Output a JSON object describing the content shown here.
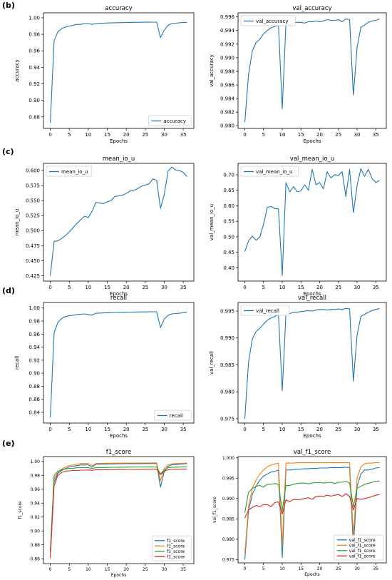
{
  "panels": [
    {
      "label": "(b)"
    },
    {
      "label": "(c)"
    },
    {
      "label": "(d)"
    },
    {
      "label": "(e)"
    }
  ],
  "colors": {
    "blue": "#1f77b4",
    "orange": "#ff7f0e",
    "green": "#2ca02c",
    "red": "#d62728",
    "axis": "#000000",
    "legend_border": "#cccccc"
  },
  "chart_data": [
    {
      "type": "line",
      "title": "accuracy",
      "xlabel": "Epochs",
      "ylabel": "accuracy",
      "xlim": [
        -1.8,
        37.8
      ],
      "ylim": [
        0.866,
        1.006
      ],
      "xticks": [
        0,
        5,
        10,
        15,
        20,
        25,
        30,
        35
      ],
      "yticks": [
        0.88,
        0.9,
        0.92,
        0.94,
        0.96,
        0.98,
        1.0
      ],
      "ytick_labels": [
        "0.88",
        "0.90",
        "0.92",
        "0.94",
        "0.96",
        "0.98",
        "1.00"
      ],
      "legend_position": "lower right",
      "series": [
        {
          "name": "accuracy",
          "color": "blue",
          "values": [
            0.873,
            0.972,
            0.983,
            0.987,
            0.989,
            0.99,
            0.991,
            0.992,
            0.992,
            0.993,
            0.993,
            0.992,
            0.993,
            0.9933,
            0.9935,
            0.9937,
            0.9938,
            0.994,
            0.9941,
            0.9942,
            0.9943,
            0.9944,
            0.9945,
            0.9946,
            0.9946,
            0.9947,
            0.9947,
            0.9948,
            0.9948,
            0.976,
            0.985,
            0.991,
            0.993,
            0.9935,
            0.994,
            0.9943,
            0.9945
          ]
        }
      ]
    },
    {
      "type": "line",
      "title": "val_accuracy",
      "xlabel": "Epochs",
      "ylabel": "val_accuracy",
      "xlim": [
        -1.8,
        37.8
      ],
      "ylim": [
        0.9796,
        0.9966
      ],
      "xticks": [
        0,
        5,
        10,
        15,
        20,
        25,
        30,
        35
      ],
      "yticks": [
        0.98,
        0.982,
        0.984,
        0.986,
        0.988,
        0.99,
        0.992,
        0.994,
        0.996
      ],
      "ytick_labels": [
        "0.980",
        "0.982",
        "0.984",
        "0.986",
        "0.988",
        "0.990",
        "0.992",
        "0.994",
        "0.996"
      ],
      "legend_position": "upper left",
      "series": [
        {
          "name": "val_accuracy",
          "color": "blue",
          "values": [
            0.9805,
            0.9875,
            0.991,
            0.9922,
            0.9927,
            0.9935,
            0.994,
            0.9944,
            0.9946,
            0.9948,
            0.9825,
            0.995,
            0.9948,
            0.9952,
            0.9952,
            0.9952,
            0.9951,
            0.9953,
            0.9953,
            0.9954,
            0.9953,
            0.9954,
            0.9956,
            0.9955,
            0.9955,
            0.9956,
            0.9953,
            0.9957,
            0.9956,
            0.9845,
            0.9915,
            0.9945,
            0.9948,
            0.9952,
            0.9954,
            0.9955,
            0.9957
          ]
        }
      ]
    },
    {
      "type": "line",
      "title": "mean_io_u",
      "xlabel": "Epochs",
      "ylabel": "mean_io_u",
      "xlim": [
        -1.8,
        37.8
      ],
      "ylim": [
        0.416,
        0.612
      ],
      "xticks": [
        0,
        5,
        10,
        15,
        20,
        25,
        30,
        35
      ],
      "yticks": [
        0.425,
        0.45,
        0.475,
        0.5,
        0.525,
        0.55,
        0.575,
        0.6
      ],
      "ytick_labels": [
        "0.425",
        "0.450",
        "0.475",
        "0.500",
        "0.525",
        "0.550",
        "0.575",
        "0.600"
      ],
      "legend_position": "upper left",
      "series": [
        {
          "name": "mean_io_u",
          "color": "blue",
          "values": [
            0.425,
            0.482,
            0.483,
            0.487,
            0.492,
            0.498,
            0.505,
            0.512,
            0.518,
            0.524,
            0.522,
            0.532,
            0.547,
            0.546,
            0.545,
            0.548,
            0.55,
            0.557,
            0.558,
            0.559,
            0.562,
            0.566,
            0.567,
            0.57,
            0.574,
            0.576,
            0.578,
            0.586,
            0.584,
            0.537,
            0.56,
            0.599,
            0.606,
            0.601,
            0.6,
            0.597,
            0.59
          ]
        }
      ]
    },
    {
      "type": "line",
      "title": "val_mean_io_u",
      "xlabel": "Epochs",
      "ylabel": "val_mean_io_u",
      "xlim": [
        -1.8,
        37.8
      ],
      "ylim": [
        0.357,
        0.737
      ],
      "xticks": [
        0,
        5,
        10,
        15,
        20,
        25,
        30,
        35
      ],
      "yticks": [
        0.4,
        0.45,
        0.5,
        0.55,
        0.6,
        0.65,
        0.7
      ],
      "ytick_labels": [
        "0.40",
        "0.45",
        "0.50",
        "0.55",
        "0.60",
        "0.65",
        "0.70"
      ],
      "legend_position": "upper left",
      "series": [
        {
          "name": "val_mean_io_u",
          "color": "blue",
          "values": [
            0.452,
            0.487,
            0.502,
            0.489,
            0.499,
            0.54,
            0.595,
            0.598,
            0.591,
            0.59,
            0.375,
            0.675,
            0.645,
            0.662,
            0.645,
            0.648,
            0.668,
            0.65,
            0.718,
            0.668,
            0.675,
            0.655,
            0.71,
            0.69,
            0.7,
            0.698,
            0.71,
            0.63,
            0.718,
            0.578,
            0.665,
            0.72,
            0.695,
            0.718,
            0.688,
            0.675,
            0.682
          ]
        }
      ]
    },
    {
      "type": "line",
      "title": "recall",
      "xlabel": "Epochs",
      "ylabel": "recall",
      "xlim": [
        -1.8,
        37.8
      ],
      "ylim": [
        0.8235,
        1.0085
      ],
      "xticks": [
        0,
        5,
        10,
        15,
        20,
        25,
        30,
        35
      ],
      "yticks": [
        0.84,
        0.86,
        0.88,
        0.9,
        0.92,
        0.94,
        0.96,
        0.98,
        1.0
      ],
      "ytick_labels": [
        "0.84",
        "0.86",
        "0.88",
        "0.90",
        "0.92",
        "0.94",
        "0.96",
        "0.98",
        "1.00"
      ],
      "legend_position": "lower right",
      "series": [
        {
          "name": "recall",
          "color": "blue",
          "values": [
            0.832,
            0.962,
            0.978,
            0.984,
            0.987,
            0.988,
            0.989,
            0.99,
            0.9905,
            0.991,
            0.99,
            0.989,
            0.992,
            0.9922,
            0.9925,
            0.9927,
            0.993,
            0.9932,
            0.9933,
            0.9935,
            0.9936,
            0.9937,
            0.9938,
            0.994,
            0.994,
            0.9941,
            0.9942,
            0.9943,
            0.9943,
            0.97,
            0.983,
            0.989,
            0.991,
            0.9915,
            0.992,
            0.993,
            0.9935
          ]
        }
      ]
    },
    {
      "type": "line",
      "title": "val_recall",
      "xlabel": "Epochs",
      "ylabel": "val_recall",
      "xlim": [
        -1.8,
        37.8
      ],
      "ylim": [
        0.9742,
        0.9966
      ],
      "xticks": [
        0,
        5,
        10,
        15,
        20,
        25,
        30,
        35
      ],
      "yticks": [
        0.975,
        0.98,
        0.985,
        0.99,
        0.995
      ],
      "ytick_labels": [
        "0.975",
        "0.980",
        "0.985",
        "0.990",
        "0.995"
      ],
      "legend_position": "upper left",
      "series": [
        {
          "name": "val_recall",
          "color": "blue",
          "values": [
            0.975,
            0.9855,
            0.9898,
            0.9912,
            0.9918,
            0.9926,
            0.9933,
            0.9937,
            0.994,
            0.9943,
            0.9802,
            0.9945,
            0.9945,
            0.9948,
            0.9948,
            0.9949,
            0.995,
            0.9951,
            0.995,
            0.9952,
            0.9953,
            0.9953,
            0.9952,
            0.9953,
            0.9953,
            0.9954,
            0.9953,
            0.9955,
            0.9954,
            0.982,
            0.9905,
            0.994,
            0.9944,
            0.9948,
            0.9951,
            0.9953,
            0.9955
          ]
        }
      ]
    },
    {
      "type": "line",
      "title": "f1_score",
      "xlabel": "Epochs",
      "ylabel": "f1_score",
      "xlim": [
        -1.8,
        37.8
      ],
      "ylim": [
        0.853,
        1.007
      ],
      "xticks": [
        0,
        5,
        10,
        15,
        20,
        25,
        30,
        35
      ],
      "yticks": [
        0.86,
        0.88,
        0.9,
        0.92,
        0.94,
        0.96,
        0.98,
        1.0
      ],
      "ytick_labels": [
        "0.86",
        "0.88",
        "0.90",
        "0.92",
        "0.94",
        "0.96",
        "0.98",
        "1.00"
      ],
      "legend_position": "lower right",
      "series": [
        {
          "name": "f1_score",
          "color": "blue",
          "values": [
            0.87,
            0.97,
            0.983,
            0.987,
            0.99,
            0.992,
            0.993,
            0.994,
            0.995,
            0.995,
            0.995,
            0.992,
            0.996,
            0.996,
            0.9962,
            0.9963,
            0.9964,
            0.9965,
            0.9966,
            0.9966,
            0.9967,
            0.9967,
            0.9968,
            0.9968,
            0.9968,
            0.9969,
            0.9969,
            0.997,
            0.997,
            0.963,
            0.985,
            0.993,
            0.995,
            0.9955,
            0.996,
            0.9965,
            0.9968
          ]
        },
        {
          "name": "f1_score",
          "color": "orange",
          "values": [
            0.86,
            0.975,
            0.985,
            0.989,
            0.992,
            0.994,
            0.995,
            0.996,
            0.997,
            0.997,
            0.997,
            0.994,
            0.997,
            0.9972,
            0.9973,
            0.9974,
            0.9975,
            0.9976,
            0.9976,
            0.9977,
            0.9977,
            0.9978,
            0.9978,
            0.9978,
            0.9979,
            0.9979,
            0.9979,
            0.998,
            0.998,
            0.972,
            0.99,
            0.995,
            0.9965,
            0.997,
            0.9972,
            0.9975,
            0.9978
          ]
        },
        {
          "name": "f1_score",
          "color": "green",
          "values": [
            0.87,
            0.98,
            0.986,
            0.988,
            0.989,
            0.99,
            0.99,
            0.991,
            0.991,
            0.991,
            0.991,
            0.99,
            0.991,
            0.9912,
            0.9913,
            0.9914,
            0.9915,
            0.9916,
            0.9917,
            0.9918,
            0.9918,
            0.9919,
            0.9919,
            0.992,
            0.992,
            0.992,
            0.992,
            0.992,
            0.992,
            0.982,
            0.988,
            0.991,
            0.9915,
            0.9918,
            0.992,
            0.992,
            0.9922
          ]
        },
        {
          "name": "f1_score",
          "color": "red",
          "values": [
            0.862,
            0.965,
            0.98,
            0.984,
            0.986,
            0.9865,
            0.987,
            0.987,
            0.9875,
            0.9875,
            0.9878,
            0.9872,
            0.988,
            0.988,
            0.988,
            0.9882,
            0.9882,
            0.9883,
            0.9884,
            0.9884,
            0.9885,
            0.9885,
            0.9885,
            0.9886,
            0.9886,
            0.9887,
            0.9887,
            0.9888,
            0.9888,
            0.981,
            0.986,
            0.988,
            0.9885,
            0.9887,
            0.9888,
            0.9889,
            0.989
          ]
        }
      ]
    },
    {
      "type": "line",
      "title": "val_f1_score",
      "xlabel": "Epochs",
      "ylabel": "val_f1_score",
      "xlim": [
        -1.8,
        37.8
      ],
      "ylim": [
        0.9742,
        1.0003
      ],
      "xticks": [
        0,
        5,
        10,
        15,
        20,
        25,
        30,
        35
      ],
      "yticks": [
        0.975,
        0.98,
        0.985,
        0.99,
        0.995,
        1.0
      ],
      "ytick_labels": [
        "0.975",
        "0.980",
        "0.985",
        "0.990",
        "0.995",
        "1.000"
      ],
      "legend_position": "lower right",
      "series": [
        {
          "name": "val_f1_score",
          "color": "blue",
          "values": [
            0.975,
            0.987,
            0.991,
            0.993,
            0.9945,
            0.9955,
            0.996,
            0.9965,
            0.9967,
            0.997,
            0.9755,
            0.997,
            0.997,
            0.9971,
            0.9972,
            0.9972,
            0.9973,
            0.9973,
            0.9974,
            0.9974,
            0.9975,
            0.9975,
            0.9975,
            0.9976,
            0.9976,
            0.9976,
            0.9976,
            0.9977,
            0.9976,
            0.978,
            0.993,
            0.996,
            0.997,
            0.997,
            0.9972,
            0.9975,
            0.9976
          ]
        },
        {
          "name": "val_f1_score",
          "color": "orange",
          "values": [
            0.9765,
            0.988,
            0.9925,
            0.9945,
            0.996,
            0.997,
            0.9978,
            0.9982,
            0.9985,
            0.9987,
            0.9785,
            0.9987,
            0.9987,
            0.9987,
            0.9988,
            0.9988,
            0.9988,
            0.9988,
            0.9988,
            0.9988,
            0.9988,
            0.9988,
            0.9988,
            0.9988,
            0.9988,
            0.9988,
            0.9988,
            0.9988,
            0.9988,
            0.981,
            0.995,
            0.9978,
            0.9985,
            0.9987,
            0.9987,
            0.9988,
            0.9988
          ]
        },
        {
          "name": "val_f1_score",
          "color": "green",
          "values": [
            0.9865,
            0.9915,
            0.9925,
            0.993,
            0.9932,
            0.9928,
            0.9935,
            0.9935,
            0.9937,
            0.9935,
            0.987,
            0.9932,
            0.9932,
            0.9935,
            0.9937,
            0.9938,
            0.9938,
            0.9936,
            0.9938,
            0.9939,
            0.9939,
            0.9938,
            0.9939,
            0.994,
            0.9937,
            0.994,
            0.994,
            0.9942,
            0.9938,
            0.988,
            0.9925,
            0.993,
            0.9935,
            0.9937,
            0.994,
            0.9942,
            0.9943
          ]
        },
        {
          "name": "val_f1_score",
          "color": "red",
          "values": [
            0.9852,
            0.9872,
            0.9878,
            0.9883,
            0.988,
            0.9885,
            0.9885,
            0.988,
            0.989,
            0.9892,
            0.9862,
            0.9897,
            0.9892,
            0.9898,
            0.9897,
            0.9898,
            0.99,
            0.9902,
            0.9898,
            0.9905,
            0.9906,
            0.9905,
            0.9908,
            0.9906,
            0.9908,
            0.991,
            0.9905,
            0.9912,
            0.9905,
            0.9872,
            0.99,
            0.9898,
            0.99,
            0.9902,
            0.9905,
            0.9908,
            0.991
          ]
        }
      ]
    }
  ]
}
